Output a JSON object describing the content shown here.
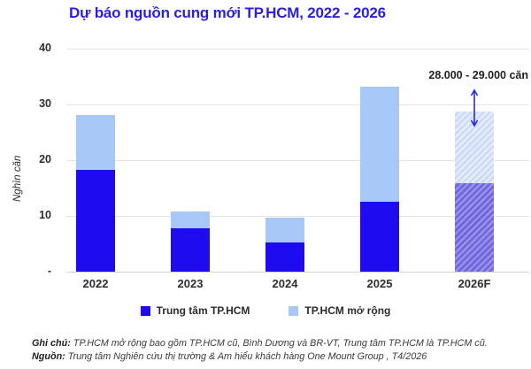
{
  "title": "Dự báo nguồn cung mới TP.HCM, 2022 - 2026",
  "chart_data": {
    "type": "bar",
    "stacked": true,
    "title": "Dự báo nguồn cung mới TP.HCM, 2022 - 2026",
    "ylabel": "Nghìn căn",
    "xlabel": "",
    "ylim": [
      0,
      40
    ],
    "grid": true,
    "legend_position": "bottom",
    "categories": [
      "2022",
      "2023",
      "2024",
      "2025",
      "2026F"
    ],
    "series": [
      {
        "name": "Trung tâm TP.HCM",
        "color": "#1e0bef",
        "values": [
          18.2,
          7.8,
          5.2,
          12.6,
          15.9
        ]
      },
      {
        "name": "TP.HCM mở rộng",
        "color": "#a7c7f6",
        "values": [
          9.9,
          3.0,
          4.5,
          20.6,
          12.8
        ]
      }
    ],
    "totals": [
      28.1,
      10.8,
      9.7,
      33.2,
      28.7
    ],
    "forecast_category": "2026F",
    "yticks": [
      {
        "label": "40",
        "value": 40
      },
      {
        "label": "30",
        "value": 30
      },
      {
        "label": "20",
        "value": 20
      },
      {
        "label": "10",
        "value": 10
      },
      {
        "label": "-",
        "value": 0
      }
    ],
    "annotation": {
      "text": "28.000 - 29.000 căn",
      "target": "2026F"
    }
  },
  "legend": {
    "items": [
      {
        "label": "Trung tâm TP.HCM"
      },
      {
        "label": "TP.HCM mở rộng"
      }
    ]
  },
  "footer": {
    "note_label": "Ghi chú:",
    "note_text": " TP.HCM mở rộng bao gồm TP.HCM cũ, Bình Dương và BR-VT, Trung tâm TP.HCM là TP.HCM cũ.",
    "source_label": "Nguồn:",
    "source_text": " Trung tâm Nghiên cứu thị trường & Am hiểu khách hàng One Mount Group , T4/2026"
  },
  "colors": {
    "title": "#2b1fdf",
    "bar_dark": "#1e0bef",
    "bar_light": "#a7c7f6",
    "arrow": "#2d28d8",
    "gridline": "#e5e5e5"
  }
}
